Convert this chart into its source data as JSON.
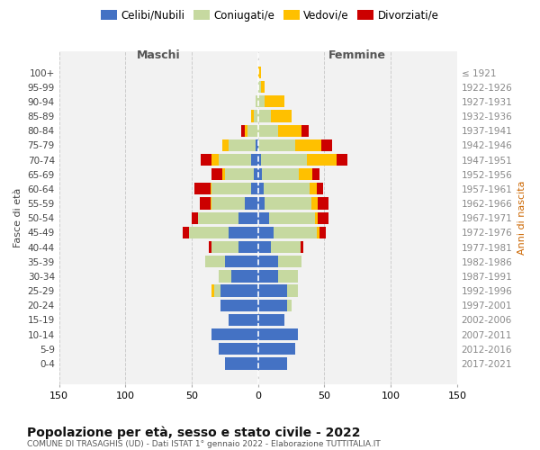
{
  "age_groups": [
    "0-4",
    "5-9",
    "10-14",
    "15-19",
    "20-24",
    "25-29",
    "30-34",
    "35-39",
    "40-44",
    "45-49",
    "50-54",
    "55-59",
    "60-64",
    "65-69",
    "70-74",
    "75-79",
    "80-84",
    "85-89",
    "90-94",
    "95-99",
    "100+"
  ],
  "birth_years": [
    "2017-2021",
    "2012-2016",
    "2007-2011",
    "2002-2006",
    "1997-2001",
    "1992-1996",
    "1987-1991",
    "1982-1986",
    "1977-1981",
    "1972-1976",
    "1967-1971",
    "1962-1966",
    "1957-1961",
    "1952-1956",
    "1947-1951",
    "1942-1946",
    "1937-1941",
    "1932-1936",
    "1927-1931",
    "1922-1926",
    "≤ 1921"
  ],
  "colors": {
    "celibi": "#4472c4",
    "coniugati": "#c6d9a0",
    "vedovi": "#ffc000",
    "divorziati": "#cc0000"
  },
  "male_celibi": [
    25,
    30,
    35,
    22,
    28,
    28,
    20,
    25,
    15,
    22,
    15,
    10,
    5,
    3,
    5,
    2,
    0,
    0,
    0,
    0,
    0
  ],
  "male_coniugati": [
    0,
    0,
    0,
    0,
    0,
    5,
    10,
    15,
    20,
    30,
    30,
    25,
    30,
    22,
    25,
    20,
    8,
    3,
    2,
    0,
    0
  ],
  "male_vedovi": [
    0,
    0,
    0,
    0,
    0,
    2,
    0,
    0,
    0,
    0,
    0,
    1,
    1,
    2,
    5,
    5,
    2,
    2,
    0,
    0,
    0
  ],
  "male_divorziati": [
    0,
    0,
    0,
    0,
    0,
    0,
    0,
    0,
    2,
    5,
    5,
    8,
    12,
    8,
    8,
    0,
    3,
    0,
    0,
    0,
    0
  ],
  "female_nubili": [
    22,
    28,
    30,
    20,
    22,
    22,
    15,
    15,
    10,
    12,
    8,
    5,
    4,
    3,
    2,
    0,
    0,
    0,
    0,
    0,
    0
  ],
  "female_coniugate": [
    0,
    0,
    0,
    0,
    3,
    8,
    15,
    18,
    22,
    32,
    35,
    35,
    35,
    28,
    35,
    28,
    15,
    10,
    5,
    2,
    0
  ],
  "female_vedove": [
    0,
    0,
    0,
    0,
    0,
    0,
    0,
    0,
    0,
    2,
    2,
    5,
    5,
    10,
    22,
    20,
    18,
    15,
    15,
    3,
    2
  ],
  "female_divorziate": [
    0,
    0,
    0,
    0,
    0,
    0,
    0,
    0,
    2,
    5,
    8,
    8,
    5,
    5,
    8,
    8,
    5,
    0,
    0,
    0,
    0
  ],
  "xlim": 150,
  "title": "Popolazione per età, sesso e stato civile - 2022",
  "subtitle": "COMUNE DI TRASAGHIS (UD) - Dati ISTAT 1° gennaio 2022 - Elaborazione TUTTITALIA.IT",
  "label_maschi": "Maschi",
  "label_femmine": "Femmine",
  "ylabel_left": "Fasce di età",
  "ylabel_right": "Anni di nascita",
  "legend_labels": [
    "Celibi/Nubili",
    "Coniugati/e",
    "Vedovi/e",
    "Divorziati/e"
  ],
  "bg_color": "#ffffff",
  "plot_bg": "#f2f2f2",
  "grid_color": "#cccccc"
}
